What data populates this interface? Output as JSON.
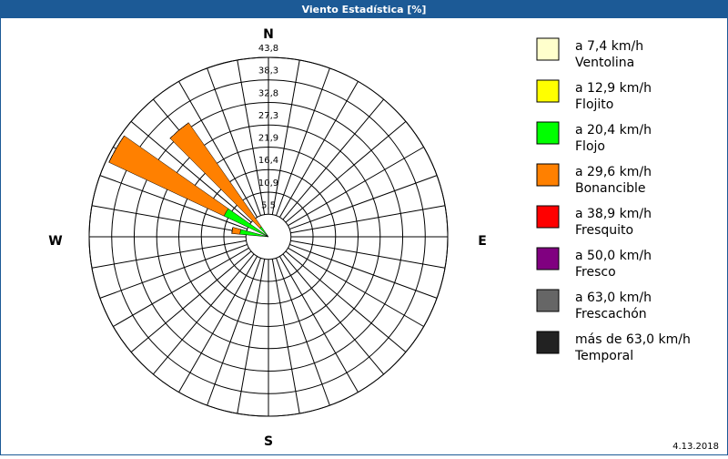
{
  "window_title": "Viento Estadística [%]",
  "date": "4.13.2018",
  "chart_data": {
    "type": "windrose",
    "compass": [
      "N",
      "E",
      "S",
      "W"
    ],
    "angles": [
      280,
      300,
      320
    ],
    "sector_width": 10,
    "ylim": [
      0,
      43.8
    ],
    "yticks": [
      {
        "value": 5.5,
        "label": "5,5"
      },
      {
        "value": 10.9,
        "label": "10,9"
      },
      {
        "value": 16.4,
        "label": "16,4"
      },
      {
        "value": 21.9,
        "label": "21,9"
      },
      {
        "value": 27.3,
        "label": "27,3"
      },
      {
        "value": 32.8,
        "label": "32,8"
      },
      {
        "value": 38.3,
        "label": "38,3"
      },
      {
        "value": 43.8,
        "label": "43,8"
      }
    ],
    "series": [
      {
        "name": "a 7,4 km/h",
        "description": "Ventolina",
        "color": "#ffffcc",
        "values": [
          0,
          0,
          0
        ]
      },
      {
        "name": "a 12,9 km/h",
        "description": "Flojito",
        "color": "#ffff00",
        "values": [
          0,
          0,
          0
        ]
      },
      {
        "name": "a 20,4 km/h",
        "description": "Flojo",
        "color": "#00ff00",
        "values": [
          7,
          12,
          3
        ]
      },
      {
        "name": "a 29,6 km/h",
        "description": "Bonancible",
        "color": "#ff8000",
        "values": [
          2,
          31,
          31
        ]
      },
      {
        "name": "a 38,9 km/h",
        "description": "Fresquito",
        "color": "#ff0000",
        "values": [
          0,
          0,
          0
        ]
      },
      {
        "name": "a 50,0 km/h",
        "description": "Fresco",
        "color": "#800080",
        "values": [
          0,
          0,
          0
        ]
      },
      {
        "name": "a 63,0 km/h",
        "description": "Frescachón",
        "color": "#666666",
        "values": [
          0,
          0,
          0
        ]
      },
      {
        "name": "más de 63,0 km/h",
        "description": "Temporal",
        "color": "#222222",
        "values": [
          0,
          0,
          0
        ]
      }
    ]
  }
}
